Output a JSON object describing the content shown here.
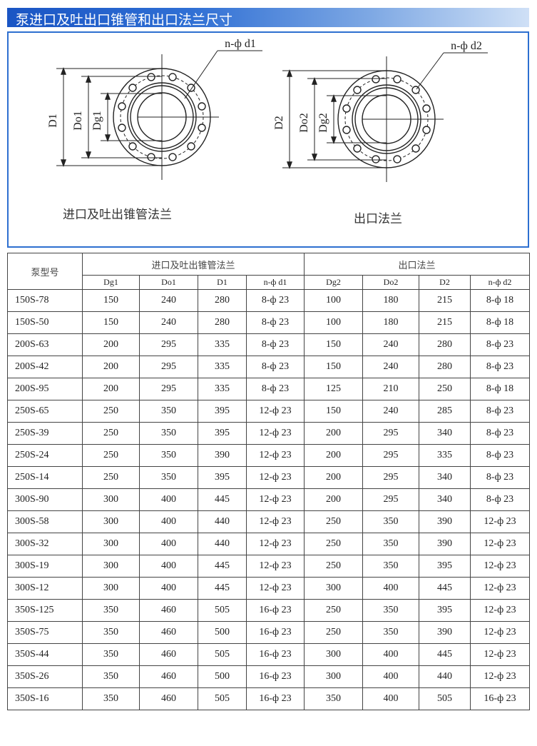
{
  "title": "泵进口及吐出口锥管和出口法兰尺寸",
  "colors": {
    "title_bar": "#1a55c4",
    "frame": "#2d6fd0"
  },
  "diagram": {
    "left": {
      "caption": "进口及吐出锥管法兰",
      "label_holes": "n-ф d1",
      "label_D": "D1",
      "label_Do": "Do1",
      "label_Dg": "Dg1"
    },
    "right": {
      "caption": "出口法兰",
      "label_holes": "n-ф d2",
      "label_D": "D2",
      "label_Do": "Do2",
      "label_Dg": "Dg2"
    }
  },
  "table": {
    "model_header": "泵型号",
    "group_inlet": "进口及吐出锥管法兰",
    "group_outlet": "出口法兰",
    "columns": [
      "Dg1",
      "Do1",
      "D1",
      "n-ф d1",
      "Dg2",
      "Do2",
      "D2",
      "n-ф d2"
    ],
    "rows": [
      [
        "150S-78",
        "150",
        "240",
        "280",
        "8-ф 23",
        "100",
        "180",
        "215",
        "8-ф 18"
      ],
      [
        "150S-50",
        "150",
        "240",
        "280",
        "8-ф 23",
        "100",
        "180",
        "215",
        "8-ф 18"
      ],
      [
        "200S-63",
        "200",
        "295",
        "335",
        "8-ф 23",
        "150",
        "240",
        "280",
        "8-ф 23"
      ],
      [
        "200S-42",
        "200",
        "295",
        "335",
        "8-ф 23",
        "150",
        "240",
        "280",
        "8-ф 23"
      ],
      [
        "200S-95",
        "200",
        "295",
        "335",
        "8-ф 23",
        "125",
        "210",
        "250",
        "8-ф 18"
      ],
      [
        "250S-65",
        "250",
        "350",
        "395",
        "12-ф 23",
        "150",
        "240",
        "285",
        "8-ф 23"
      ],
      [
        "250S-39",
        "250",
        "350",
        "395",
        "12-ф 23",
        "200",
        "295",
        "340",
        "8-ф 23"
      ],
      [
        "250S-24",
        "250",
        "350",
        "390",
        "12-ф 23",
        "200",
        "295",
        "335",
        "8-ф 23"
      ],
      [
        "250S-14",
        "250",
        "350",
        "395",
        "12-ф 23",
        "200",
        "295",
        "340",
        "8-ф 23"
      ],
      [
        "300S-90",
        "300",
        "400",
        "445",
        "12-ф 23",
        "200",
        "295",
        "340",
        "8-ф 23"
      ],
      [
        "300S-58",
        "300",
        "400",
        "440",
        "12-ф 23",
        "250",
        "350",
        "390",
        "12-ф 23"
      ],
      [
        "300S-32",
        "300",
        "400",
        "440",
        "12-ф 23",
        "250",
        "350",
        "390",
        "12-ф 23"
      ],
      [
        "300S-19",
        "300",
        "400",
        "445",
        "12-ф 23",
        "250",
        "350",
        "395",
        "12-ф 23"
      ],
      [
        "300S-12",
        "300",
        "400",
        "445",
        "12-ф 23",
        "300",
        "400",
        "445",
        "12-ф 23"
      ],
      [
        "350S-125",
        "350",
        "460",
        "505",
        "16-ф 23",
        "250",
        "350",
        "395",
        "12-ф 23"
      ],
      [
        "350S-75",
        "350",
        "460",
        "500",
        "16-ф 23",
        "250",
        "350",
        "390",
        "12-ф 23"
      ],
      [
        "350S-44",
        "350",
        "460",
        "505",
        "16-ф 23",
        "300",
        "400",
        "445",
        "12-ф 23"
      ],
      [
        "350S-26",
        "350",
        "460",
        "500",
        "16-ф 23",
        "300",
        "400",
        "440",
        "12-ф 23"
      ],
      [
        "350S-16",
        "350",
        "460",
        "505",
        "16-ф 23",
        "350",
        "400",
        "505",
        "16-ф 23"
      ]
    ]
  }
}
